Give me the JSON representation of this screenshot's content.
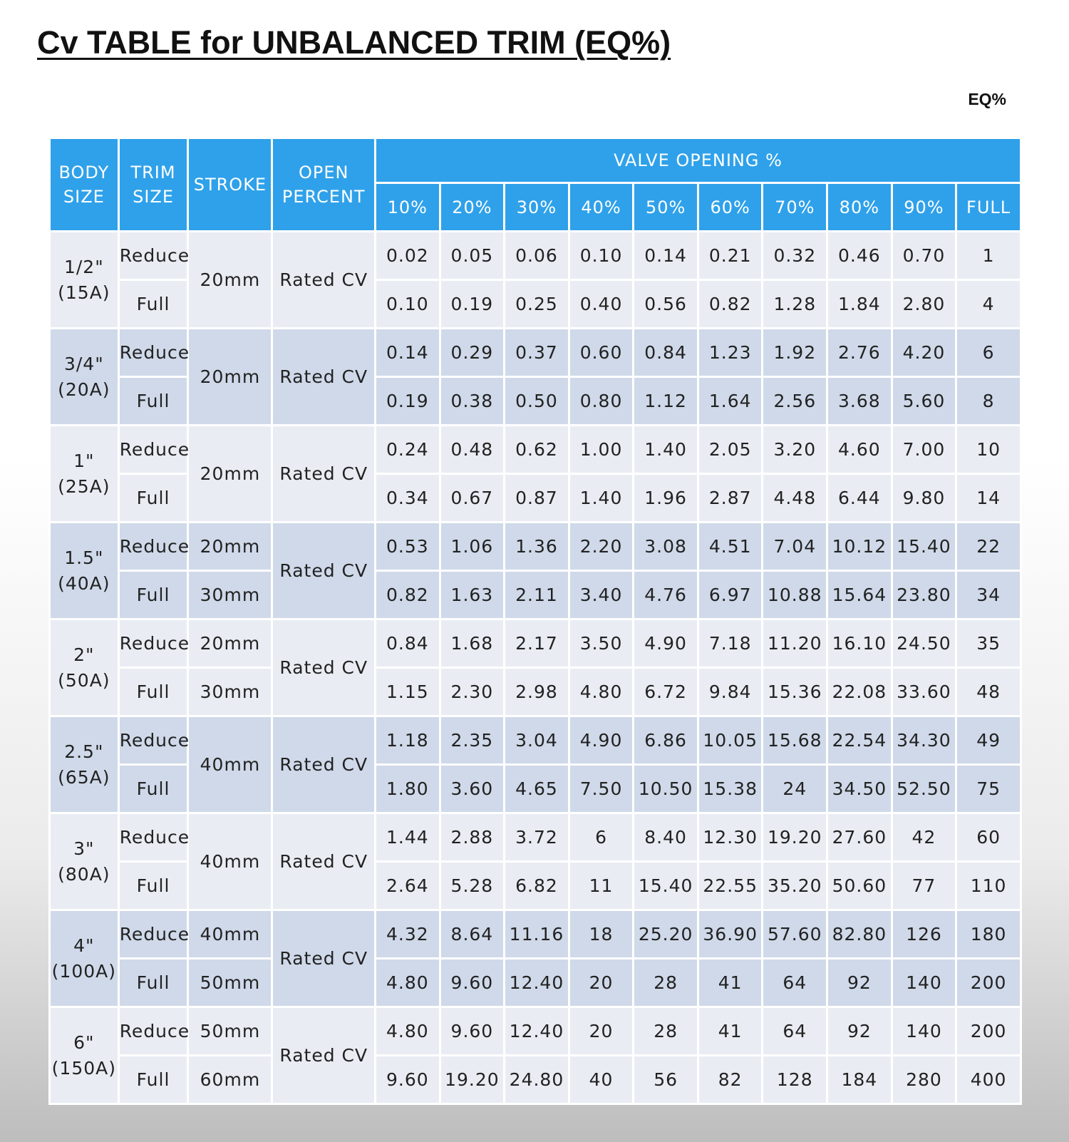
{
  "title": "Cv TABLE for UNBALANCED TRIM (EQ%)",
  "corner_label": "EQ%",
  "headers": {
    "body_size": [
      "BODY",
      "SIZE"
    ],
    "trim_size": [
      "TRIM",
      "SIZE"
    ],
    "stroke": "STROKE",
    "open_percent": [
      "OPEN",
      "PERCENT"
    ],
    "valve_opening": "VALVE OPENING %",
    "openings": [
      "10%",
      "20%",
      "30%",
      "40%",
      "50%",
      "60%",
      "70%",
      "80%",
      "90%",
      "FULL"
    ]
  },
  "groups": [
    {
      "size": "1/2\"",
      "metric": "(15A)",
      "open": "Rated CV",
      "strokes": [
        "20mm"
      ],
      "rows": [
        {
          "trim": "Reduce",
          "values": [
            "0.02",
            "0.05",
            "0.06",
            "0.10",
            "0.14",
            "0.21",
            "0.32",
            "0.46",
            "0.70",
            "1"
          ]
        },
        {
          "trim": "Full",
          "values": [
            "0.10",
            "0.19",
            "0.25",
            "0.40",
            "0.56",
            "0.82",
            "1.28",
            "1.84",
            "2.80",
            "4"
          ]
        }
      ]
    },
    {
      "size": "3/4\"",
      "metric": "(20A)",
      "open": "Rated CV",
      "strokes": [
        "20mm"
      ],
      "rows": [
        {
          "trim": "Reduce",
          "values": [
            "0.14",
            "0.29",
            "0.37",
            "0.60",
            "0.84",
            "1.23",
            "1.92",
            "2.76",
            "4.20",
            "6"
          ]
        },
        {
          "trim": "Full",
          "values": [
            "0.19",
            "0.38",
            "0.50",
            "0.80",
            "1.12",
            "1.64",
            "2.56",
            "3.68",
            "5.60",
            "8"
          ]
        }
      ]
    },
    {
      "size": "1\"",
      "metric": "(25A)",
      "open": "Rated CV",
      "strokes": [
        "20mm"
      ],
      "rows": [
        {
          "trim": "Reduce",
          "values": [
            "0.24",
            "0.48",
            "0.62",
            "1.00",
            "1.40",
            "2.05",
            "3.20",
            "4.60",
            "7.00",
            "10"
          ]
        },
        {
          "trim": "Full",
          "values": [
            "0.34",
            "0.67",
            "0.87",
            "1.40",
            "1.96",
            "2.87",
            "4.48",
            "6.44",
            "9.80",
            "14"
          ]
        }
      ]
    },
    {
      "size": "1.5\"",
      "metric": "(40A)",
      "open": "Rated CV",
      "strokes": [
        "20mm",
        "30mm"
      ],
      "rows": [
        {
          "trim": "Reduce",
          "values": [
            "0.53",
            "1.06",
            "1.36",
            "2.20",
            "3.08",
            "4.51",
            "7.04",
            "10.12",
            "15.40",
            "22"
          ]
        },
        {
          "trim": "Full",
          "values": [
            "0.82",
            "1.63",
            "2.11",
            "3.40",
            "4.76",
            "6.97",
            "10.88",
            "15.64",
            "23.80",
            "34"
          ]
        }
      ]
    },
    {
      "size": "2\"",
      "metric": "(50A)",
      "open": "Rated CV",
      "strokes": [
        "20mm",
        "30mm"
      ],
      "rows": [
        {
          "trim": "Reduce",
          "values": [
            "0.84",
            "1.68",
            "2.17",
            "3.50",
            "4.90",
            "7.18",
            "11.20",
            "16.10",
            "24.50",
            "35"
          ]
        },
        {
          "trim": "Full",
          "values": [
            "1.15",
            "2.30",
            "2.98",
            "4.80",
            "6.72",
            "9.84",
            "15.36",
            "22.08",
            "33.60",
            "48"
          ]
        }
      ]
    },
    {
      "size": "2.5\"",
      "metric": "(65A)",
      "open": "Rated CV",
      "strokes": [
        "40mm"
      ],
      "rows": [
        {
          "trim": "Reduce",
          "values": [
            "1.18",
            "2.35",
            "3.04",
            "4.90",
            "6.86",
            "10.05",
            "15.68",
            "22.54",
            "34.30",
            "49"
          ]
        },
        {
          "trim": "Full",
          "values": [
            "1.80",
            "3.60",
            "4.65",
            "7.50",
            "10.50",
            "15.38",
            "24",
            "34.50",
            "52.50",
            "75"
          ]
        }
      ]
    },
    {
      "size": "3\"",
      "metric": "(80A)",
      "open": "Rated CV",
      "strokes": [
        "40mm"
      ],
      "rows": [
        {
          "trim": "Reduce",
          "values": [
            "1.44",
            "2.88",
            "3.72",
            "6",
            "8.40",
            "12.30",
            "19.20",
            "27.60",
            "42",
            "60"
          ]
        },
        {
          "trim": "Full",
          "values": [
            "2.64",
            "5.28",
            "6.82",
            "11",
            "15.40",
            "22.55",
            "35.20",
            "50.60",
            "77",
            "110"
          ]
        }
      ]
    },
    {
      "size": "4\"",
      "metric": "(100A)",
      "open": "Rated CV",
      "strokes": [
        "40mm",
        "50mm"
      ],
      "rows": [
        {
          "trim": "Reduce",
          "values": [
            "4.32",
            "8.64",
            "11.16",
            "18",
            "25.20",
            "36.90",
            "57.60",
            "82.80",
            "126",
            "180"
          ]
        },
        {
          "trim": "Full",
          "values": [
            "4.80",
            "9.60",
            "12.40",
            "20",
            "28",
            "41",
            "64",
            "92",
            "140",
            "200"
          ]
        }
      ]
    },
    {
      "size": "6\"",
      "metric": "(150A)",
      "open": "Rated CV",
      "strokes": [
        "50mm",
        "60mm"
      ],
      "rows": [
        {
          "trim": "Reduce",
          "values": [
            "4.80",
            "9.60",
            "12.40",
            "20",
            "28",
            "41",
            "64",
            "92",
            "140",
            "200"
          ]
        },
        {
          "trim": "Full",
          "values": [
            "9.60",
            "19.20",
            "24.80",
            "40",
            "56",
            "82",
            "128",
            "184",
            "280",
            "400"
          ]
        }
      ]
    }
  ]
}
